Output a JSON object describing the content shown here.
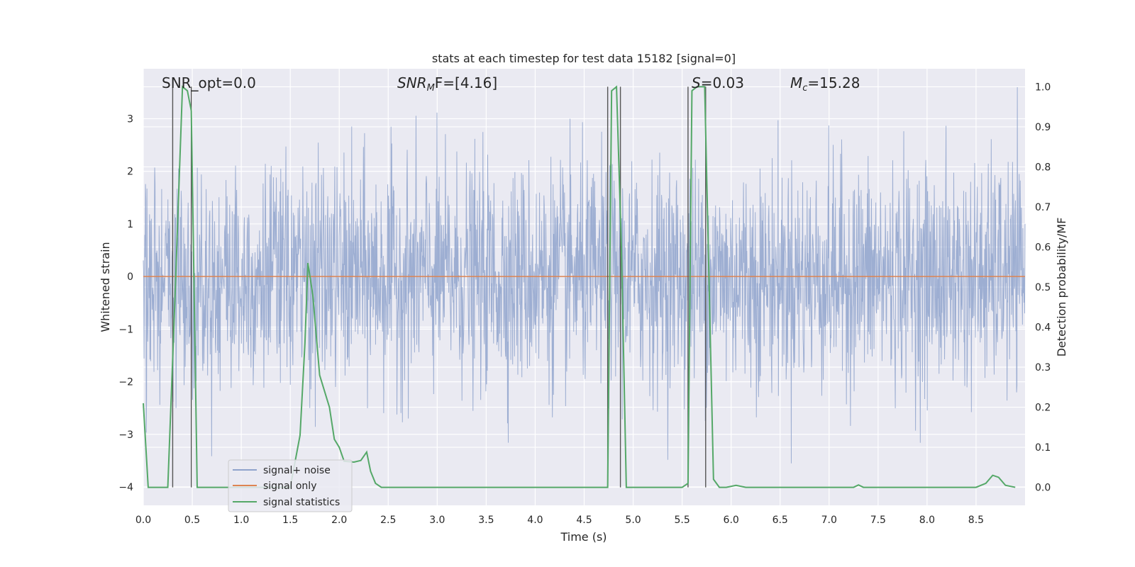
{
  "chart_data": {
    "type": "line",
    "title": "stats at each timestep for test data 15182 [signal=0]",
    "xlabel": "Time (s)",
    "ylabel_left": "Whitened strain",
    "ylabel_right": "Detection probability/MF",
    "xlim": [
      0.0,
      9.0
    ],
    "ylim_left": [
      -4.35,
      3.95
    ],
    "ylim_right": [
      -0.045,
      1.045
    ],
    "x_ticks": [
      "0.0",
      "0.5",
      "1.0",
      "1.5",
      "2.0",
      "2.5",
      "3.0",
      "3.5",
      "4.0",
      "4.5",
      "5.0",
      "5.5",
      "6.0",
      "6.5",
      "7.0",
      "7.5",
      "8.0",
      "8.5"
    ],
    "y_ticks_left": [
      "−4",
      "−3",
      "−2",
      "−1",
      "0",
      "1",
      "2",
      "3"
    ],
    "y_ticks_right": [
      "0.0",
      "0.1",
      "0.2",
      "0.3",
      "0.4",
      "0.5",
      "0.6",
      "0.7",
      "0.8",
      "0.9",
      "1.0"
    ],
    "grid": true,
    "annotations": {
      "snr_opt": "SNR_opt=0.0",
      "snr_mf_main": "SNR",
      "snr_mf_sub": "M",
      "snr_mf_rest": "F=[4.16]",
      "s_main": "S",
      "s_rest": "=0.03",
      "mc_main": "M",
      "mc_sub": "c",
      "mc_rest": "=15.28"
    },
    "series": [
      {
        "name": "signal+ noise",
        "color": "#8fa3cc",
        "description": "dense whitened strain noise, approx. within ±2 with peaks to ±3.6"
      },
      {
        "name": "signal only",
        "color": "#dd8452",
        "values_constant": 0.0
      },
      {
        "name": "signal statistics",
        "color": "#55a868",
        "x": [
          0.0,
          0.05,
          0.25,
          0.32,
          0.4,
          0.45,
          0.49,
          0.55,
          0.6,
          1.0,
          1.5,
          1.6,
          1.65,
          1.68,
          1.73,
          1.8,
          1.9,
          1.95,
          2.0,
          2.05,
          2.15,
          2.22,
          2.28,
          2.32,
          2.37,
          2.43,
          2.5,
          3.0,
          3.5,
          4.0,
          4.5,
          4.74,
          4.78,
          4.83,
          4.88,
          4.93,
          5.0,
          5.5,
          5.56,
          5.6,
          5.65,
          5.73,
          5.82,
          5.88,
          5.95,
          6.05,
          6.15,
          6.5,
          7.0,
          7.25,
          7.3,
          7.35,
          7.5,
          8.0,
          8.5,
          8.6,
          8.67,
          8.73,
          8.8,
          8.9
        ],
        "values": [
          0.21,
          0.0,
          0.0,
          0.45,
          1.0,
          0.99,
          0.94,
          0.0,
          0.0,
          0.0,
          0.0,
          0.13,
          0.36,
          0.56,
          0.48,
          0.28,
          0.2,
          0.12,
          0.1,
          0.065,
          0.063,
          0.067,
          0.088,
          0.04,
          0.01,
          0.0,
          0.0,
          0.0,
          0.0,
          0.0,
          0.0,
          0.0,
          0.99,
          1.0,
          0.6,
          0.0,
          0.0,
          0.0,
          0.01,
          0.99,
          1.0,
          1.0,
          0.02,
          0.0,
          0.0,
          0.005,
          0.0,
          0.0,
          0.0,
          0.0,
          0.006,
          0.0,
          0.0,
          0.0,
          0.0,
          0.01,
          0.03,
          0.025,
          0.005,
          0.0
        ]
      }
    ],
    "vertical_markers_seconds": [
      0.3,
      0.49,
      4.74,
      4.87,
      5.56,
      5.74
    ]
  }
}
